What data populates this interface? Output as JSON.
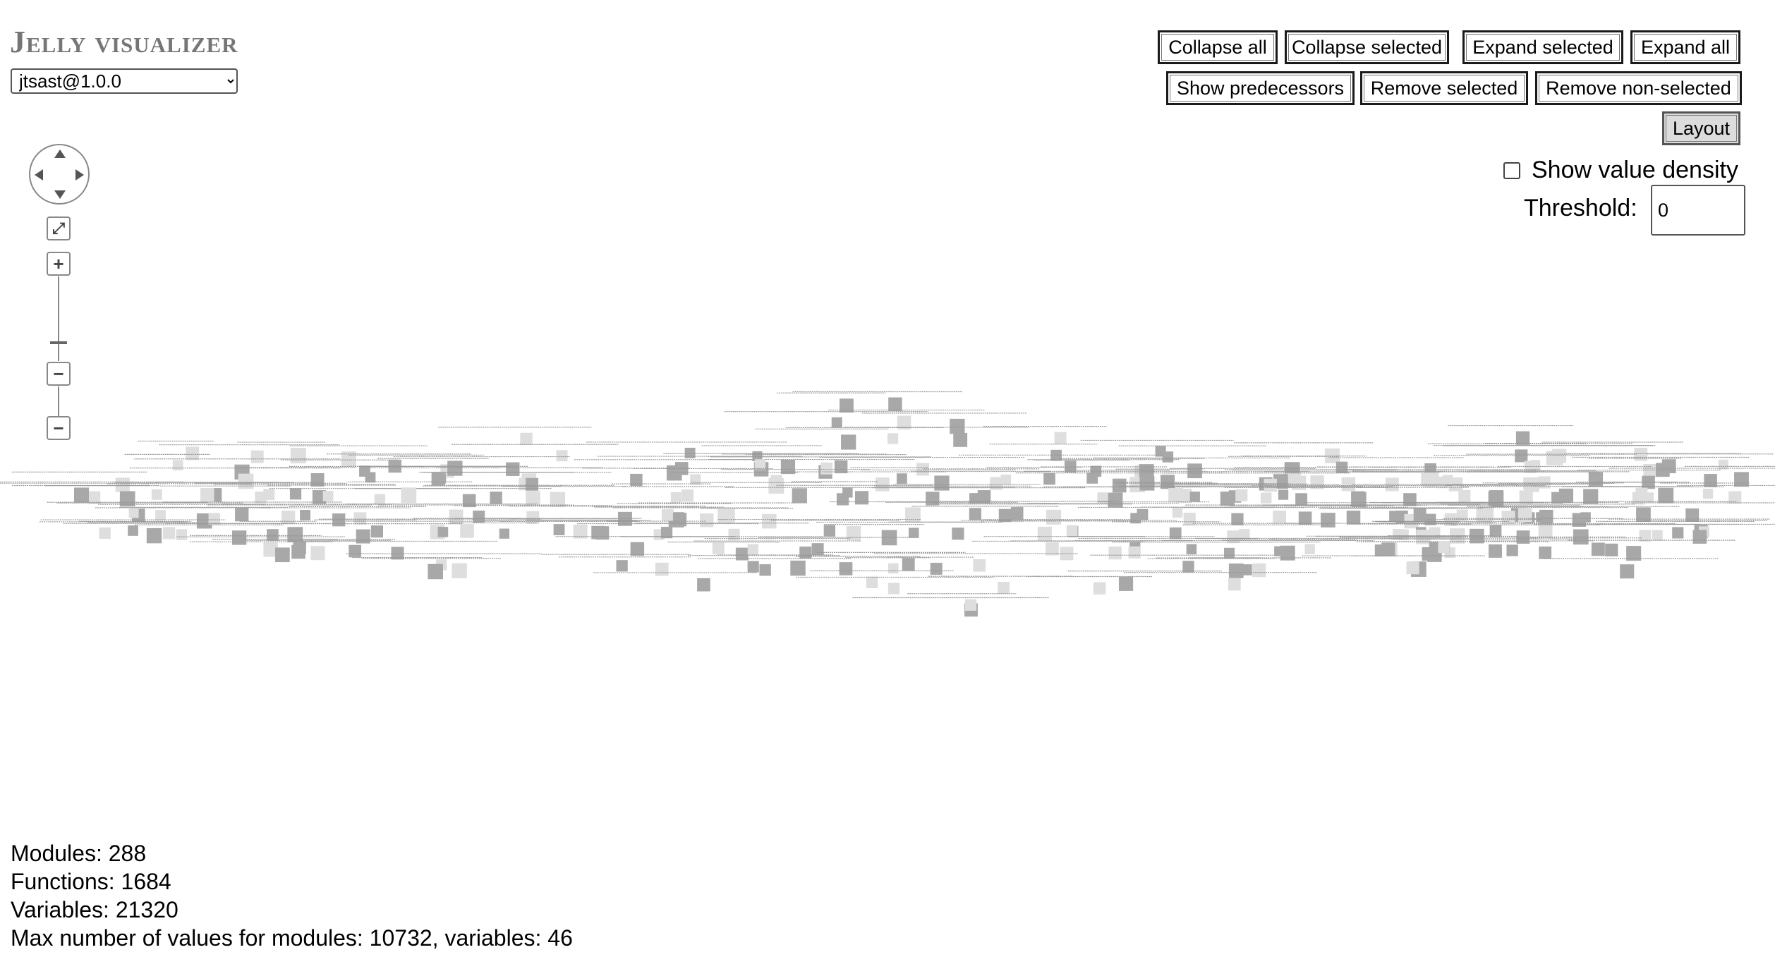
{
  "app": {
    "title": "Jelly visualizer"
  },
  "package_select": {
    "selected": "jtsast@1.0.0"
  },
  "toolbar": {
    "row1": [
      "Collapse all",
      "Collapse selected",
      "Expand selected",
      "Expand all"
    ],
    "row2": [
      "Show predecessors",
      "Remove selected",
      "Remove non-selected"
    ],
    "layout_label": "Layout"
  },
  "options": {
    "show_value_density_label": "Show value density",
    "show_value_density_checked": false,
    "threshold_label": "Threshold:",
    "threshold_value": "0"
  },
  "zoom_controls": {
    "icons": [
      "pan-up-icon",
      "pan-down-icon",
      "pan-left-icon",
      "pan-right-icon",
      "fit-icon",
      "zoom-in-icon",
      "zoom-out-icon"
    ]
  },
  "stats": {
    "modules": "Modules: 288",
    "functions": "Functions: 1684",
    "variables": "Variables: 21320",
    "max_values": "Max number of values for modules: 10732, variables: 46"
  },
  "colors": {
    "node_dark": "#a8a8a8",
    "node_light": "#dedede",
    "edge": "#999999",
    "title": "#767676"
  }
}
